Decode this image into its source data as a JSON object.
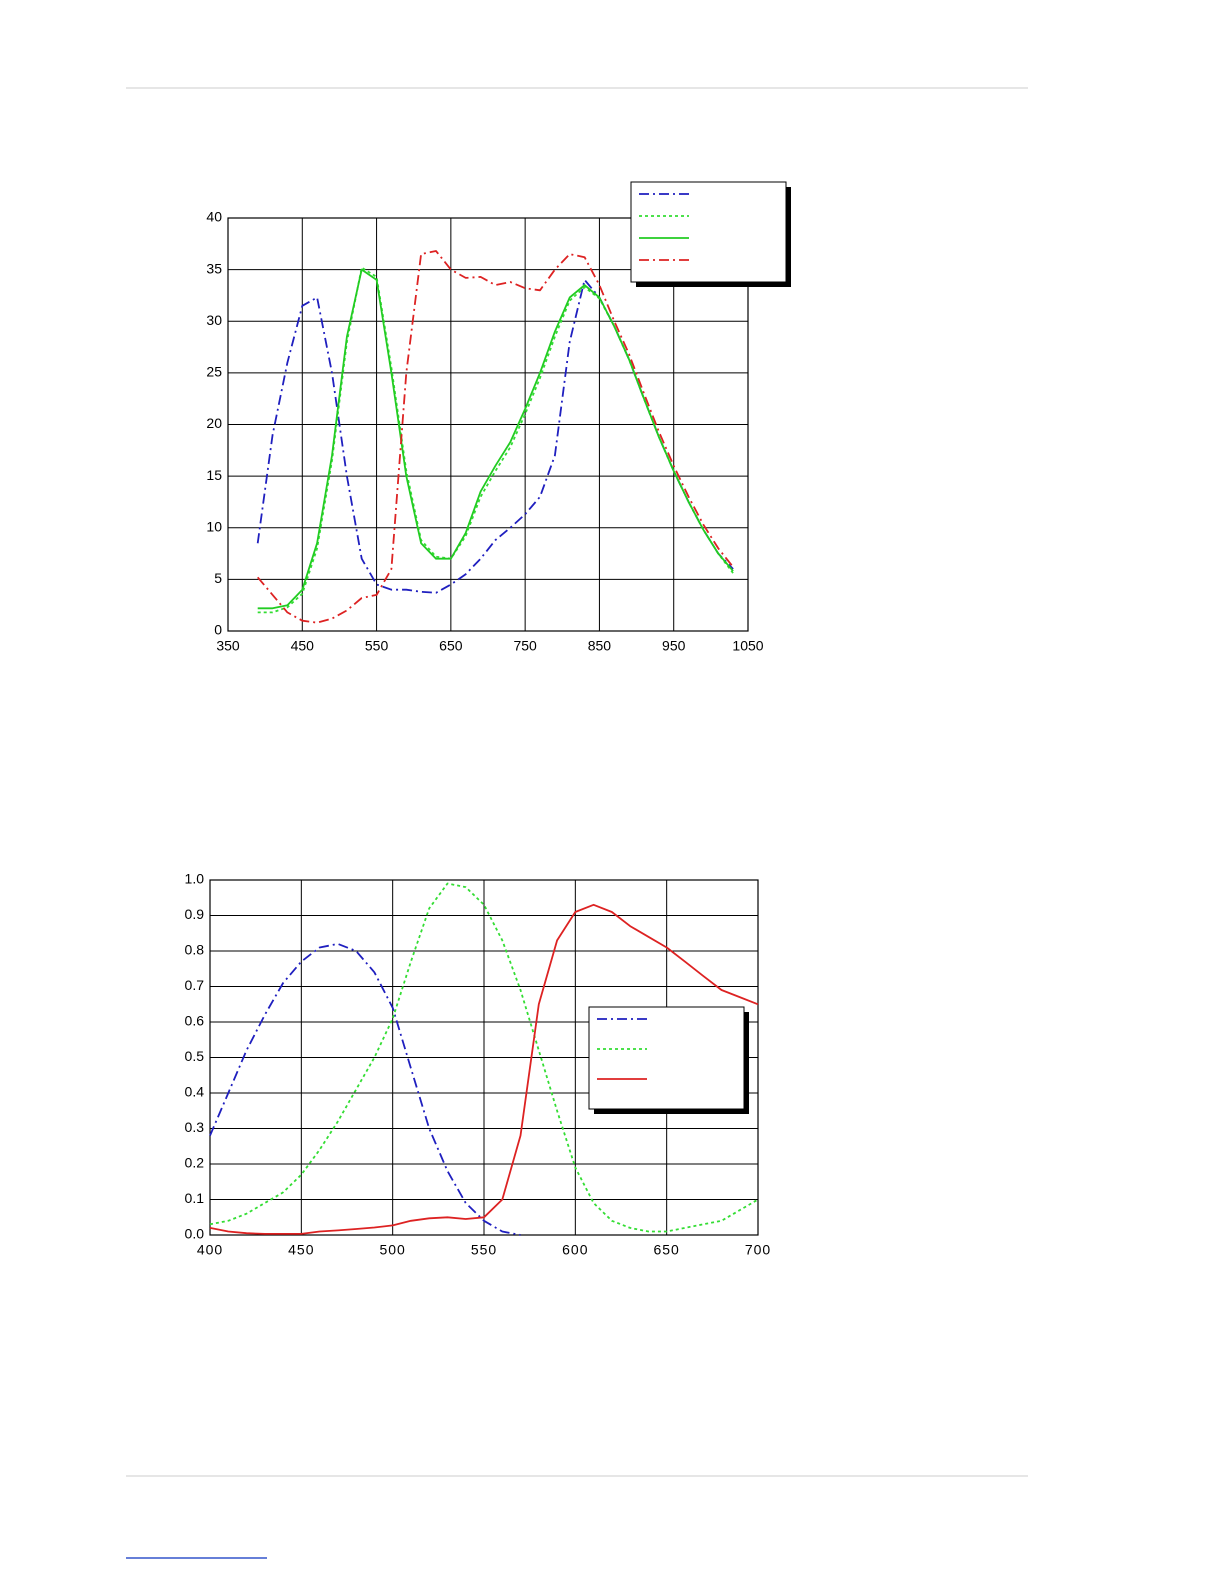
{
  "chart_data": [
    {
      "type": "line",
      "x": [
        390,
        410,
        430,
        450,
        470,
        490,
        510,
        530,
        550,
        570,
        590,
        610,
        630,
        650,
        670,
        690,
        710,
        730,
        750,
        770,
        790,
        810,
        830,
        850,
        870,
        890,
        910,
        930,
        950,
        970,
        990,
        1010,
        1030
      ],
      "series": [
        {
          "color": "#1f1fbf",
          "dash": "dashdot",
          "values": [
            8.5,
            19,
            26,
            31.5,
            32.3,
            25,
            15,
            7,
            4.5,
            4.0,
            4.0,
            3.8,
            3.7,
            4.5,
            5.5,
            7,
            8.8,
            10,
            11.3,
            13,
            17,
            28,
            34,
            32.3,
            29.5,
            26.3,
            22.5,
            18.8,
            15.5,
            12.5,
            9.8,
            7.5,
            6
          ]
        },
        {
          "color": "#33dd33",
          "dash": "dotted",
          "values": [
            1.8,
            1.8,
            2.3,
            3.6,
            8,
            16.5,
            28,
            35.2,
            34.3,
            25.5,
            15.5,
            8.8,
            7.2,
            7,
            9.2,
            13,
            15.5,
            17.8,
            21,
            24.5,
            28.5,
            32,
            33.3,
            32.2,
            29.5,
            26.3,
            22.5,
            18.8,
            15.5,
            12.5,
            9.8,
            7.5,
            5.6
          ]
        },
        {
          "color": "#22cc22",
          "dash": "solid",
          "values": [
            2.2,
            2.2,
            2.5,
            4,
            8.5,
            17,
            28.5,
            35,
            34,
            25,
            15,
            8.5,
            7,
            7,
            9.5,
            13.5,
            16,
            18.3,
            21.5,
            25,
            29,
            32.3,
            33.5,
            32.3,
            29.5,
            26.3,
            22.5,
            18.8,
            15.5,
            12.5,
            9.8,
            7.5,
            5.8
          ]
        },
        {
          "color": "#dd2222",
          "dash": "dashdot",
          "values": [
            5.2,
            3.5,
            1.8,
            1,
            0.8,
            1.2,
            2,
            3.2,
            3.5,
            6,
            25,
            36.5,
            36.8,
            35,
            34.2,
            34.3,
            33.5,
            33.8,
            33.2,
            33,
            35,
            36.5,
            36.2,
            33.5,
            30,
            26.8,
            23,
            19.3,
            16,
            13,
            10.3,
            8,
            6.2
          ]
        }
      ],
      "xlim": [
        350,
        1050
      ],
      "xticks": [
        350,
        450,
        550,
        650,
        750,
        850,
        950,
        1050
      ],
      "ylim": [
        0,
        40
      ],
      "yticks": [
        0,
        5,
        10,
        15,
        20,
        25,
        30,
        35,
        40
      ],
      "grid": true,
      "legend": "top right outside"
    },
    {
      "type": "line",
      "x": [
        400,
        410,
        420,
        430,
        440,
        450,
        460,
        470,
        480,
        490,
        500,
        510,
        520,
        530,
        540,
        550,
        560,
        570,
        580,
        590,
        600,
        610,
        620,
        630,
        640,
        650,
        660,
        670,
        680,
        690,
        700
      ],
      "series": [
        {
          "color": "#1f1fbf",
          "dash": "dashdot",
          "values": [
            0.28,
            0.4,
            0.52,
            0.62,
            0.71,
            0.77,
            0.81,
            0.82,
            0.8,
            0.74,
            0.64,
            0.47,
            0.3,
            0.18,
            0.09,
            0.04,
            0.01,
            0,
            null,
            null,
            null,
            null,
            null,
            null,
            null,
            null,
            null,
            null,
            null,
            null,
            null
          ]
        },
        {
          "color": "#33dd33",
          "dash": "dotted",
          "values": [
            0.03,
            0.04,
            0.06,
            0.09,
            0.12,
            0.17,
            0.24,
            0.32,
            0.41,
            0.5,
            0.61,
            0.77,
            0.92,
            0.99,
            0.98,
            0.93,
            0.83,
            0.69,
            0.52,
            0.35,
            0.19,
            0.09,
            0.04,
            0.02,
            0.01,
            0.01,
            0.02,
            0.03,
            0.04,
            0.07,
            0.1
          ]
        },
        {
          "color": "#dd2222",
          "dash": "solid",
          "values": [
            0.02,
            0.01,
            0.005,
            0.003,
            0.003,
            0.003,
            0.01,
            0.013,
            0.017,
            0.021,
            0.027,
            0.04,
            0.047,
            0.05,
            0.045,
            0.05,
            0.1,
            0.28,
            0.65,
            0.83,
            0.91,
            0.93,
            0.91,
            0.87,
            0.84,
            0.81,
            0.77,
            0.73,
            0.69,
            0.67,
            0.65
          ]
        }
      ],
      "xlim": [
        400,
        700
      ],
      "xticks": [
        400,
        450,
        500,
        550,
        600,
        650,
        700
      ],
      "ylim": [
        0,
        1
      ],
      "yticks": [
        {
          "value": 0,
          "label": "0.0"
        },
        0.1,
        0.2,
        0.3,
        0.4,
        0.5,
        0.6,
        0.7,
        0.8,
        0.9,
        {
          "value": 1,
          "label": "1.0"
        }
      ],
      "grid": true,
      "legend": "center right"
    }
  ]
}
